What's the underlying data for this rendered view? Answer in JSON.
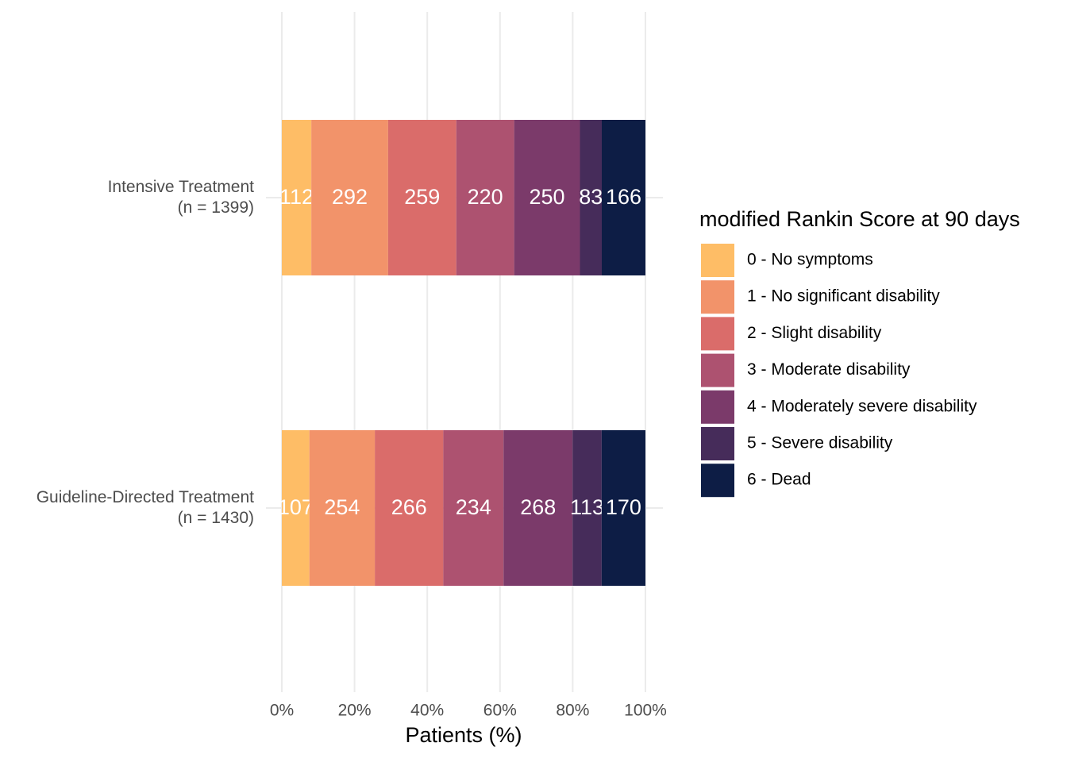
{
  "chart_data": {
    "type": "bar",
    "orientation": "horizontal",
    "stacked": "percent",
    "x_label": "Patients (%)",
    "legend_title": "modified Rankin Score at 90 days",
    "legend_position": "right",
    "categories": [
      "Intensive Treatment\n(n = 1399)",
      "Guideline-Directed Treatment\n(n = 1430)"
    ],
    "series": [
      {
        "name": "0 - No symptoms",
        "color": "#FEBD66",
        "values": [
          112,
          107
        ]
      },
      {
        "name": "1 - No significant disability",
        "color": "#F2936A",
        "values": [
          292,
          254
        ]
      },
      {
        "name": "2 - Slight disability",
        "color": "#DA6C6A",
        "values": [
          259,
          266
        ]
      },
      {
        "name": "3 - Moderate disability",
        "color": "#AD5270",
        "values": [
          220,
          234
        ]
      },
      {
        "name": "4 - Moderately severe disability",
        "color": "#7B3A6A",
        "values": [
          250,
          268
        ]
      },
      {
        "name": "5 - Severe disability",
        "color": "#462C5A",
        "values": [
          83,
          113
        ]
      },
      {
        "name": "6 - Dead",
        "color": "#0D1D45",
        "values": [
          166,
          170
        ]
      }
    ],
    "xlim": [
      0,
      100
    ],
    "xticks": [
      {
        "value": 0,
        "label": "0%"
      },
      {
        "value": 20,
        "label": "20%"
      },
      {
        "value": 40,
        "label": "40%"
      },
      {
        "value": 60,
        "label": "60%"
      },
      {
        "value": 80,
        "label": "80%"
      },
      {
        "value": 100,
        "label": "100%"
      }
    ],
    "grid": true
  }
}
